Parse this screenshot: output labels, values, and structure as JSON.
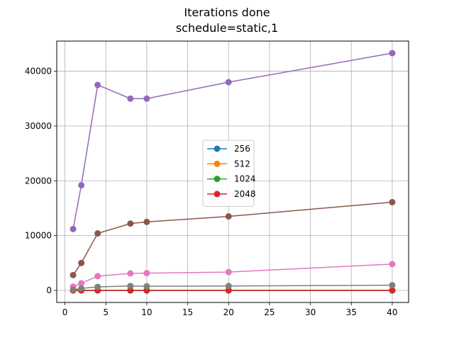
{
  "chart_data": {
    "type": "line",
    "title": "Iterations done",
    "subtitle": "schedule=static,1",
    "xlabel": "",
    "ylabel": "",
    "x": [
      1,
      2,
      4,
      8,
      10,
      20,
      40
    ],
    "xlim": [
      -1,
      42
    ],
    "ylim": [
      -2200,
      45500
    ],
    "xticks": [
      0,
      5,
      10,
      15,
      20,
      25,
      30,
      35,
      40
    ],
    "yticks": [
      0,
      10000,
      20000,
      30000,
      40000
    ],
    "grid": true,
    "legend_position": "center",
    "series": [
      {
        "name": "256",
        "color": "#1f77b4",
        "values": [
          0,
          0,
          0,
          0,
          0,
          0,
          0
        ]
      },
      {
        "name": "512",
        "color": "#ff7f0e",
        "values": [
          0,
          0,
          0,
          0,
          0,
          0,
          0
        ]
      },
      {
        "name": "1024",
        "color": "#2ca02c",
        "values": [
          0,
          0,
          0,
          0,
          0,
          0,
          0
        ]
      },
      {
        "name": "2048",
        "color": "#d62728",
        "values": [
          0,
          0,
          0,
          0,
          0,
          0,
          0
        ]
      },
      {
        "color": "#9467bd",
        "values": [
          11200,
          19200,
          37500,
          35000,
          35000,
          38000,
          43300
        ]
      },
      {
        "color": "#8c564b",
        "values": [
          2800,
          5000,
          10400,
          12200,
          12500,
          13500,
          16100
        ]
      },
      {
        "color": "#e377c2",
        "values": [
          700,
          1300,
          2600,
          3100,
          3150,
          3350,
          4800
        ]
      },
      {
        "color": "#7f7f7f",
        "values": [
          150,
          350,
          650,
          800,
          750,
          800,
          950
        ]
      }
    ]
  }
}
